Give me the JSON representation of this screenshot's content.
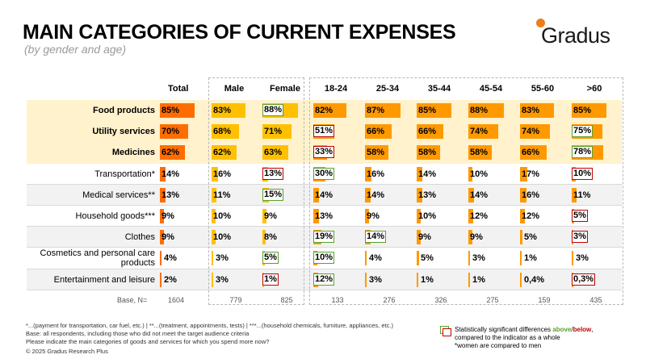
{
  "title": "MAIN CATEGORIES OF CURRENT EXPENSES",
  "subtitle": "(by gender and age)",
  "logo_text": "Gradus",
  "colors": {
    "total": "#ff6d00",
    "gender": "#ffc000",
    "age": "#ff9900",
    "up": "#5aa02c",
    "down": "#c00000",
    "highlight": "#fff2cc",
    "stripe": "#f2f2f2"
  },
  "chart_data": {
    "type": "table",
    "title": "MAIN CATEGORIES OF CURRENT EXPENSES",
    "subtitle": "(by gender and age)",
    "columns": [
      "Total",
      "Male",
      "Female",
      "18-24",
      "25-34",
      "35-44",
      "45-54",
      "55-60",
      ">60"
    ],
    "rows": [
      {
        "label": "Food products",
        "bold": true,
        "highlight": true,
        "values": [
          "85%",
          "83%",
          "88%",
          "82%",
          "87%",
          "85%",
          "88%",
          "83%",
          "85%"
        ],
        "nums": [
          85,
          83,
          88,
          82,
          87,
          85,
          88,
          83,
          85
        ],
        "sig": [
          "",
          "",
          "up",
          "",
          "",
          "",
          "",
          "",
          ""
        ]
      },
      {
        "label": "Utility services",
        "bold": true,
        "highlight": true,
        "values": [
          "70%",
          "68%",
          "71%",
          "51%",
          "66%",
          "66%",
          "74%",
          "74%",
          "75%"
        ],
        "nums": [
          70,
          68,
          71,
          51,
          66,
          66,
          74,
          74,
          75
        ],
        "sig": [
          "",
          "",
          "",
          "down",
          "",
          "",
          "",
          "",
          "up"
        ]
      },
      {
        "label": "Medicines",
        "bold": true,
        "highlight": true,
        "values": [
          "62%",
          "62%",
          "63%",
          "33%",
          "58%",
          "58%",
          "58%",
          "66%",
          "78%"
        ],
        "nums": [
          62,
          62,
          63,
          33,
          58,
          58,
          58,
          66,
          78
        ],
        "sig": [
          "",
          "",
          "",
          "down",
          "",
          "",
          "",
          "",
          "up"
        ]
      },
      {
        "label": "Transportation*",
        "bold": false,
        "highlight": false,
        "values": [
          "14%",
          "16%",
          "13%",
          "30%",
          "16%",
          "14%",
          "10%",
          "17%",
          "10%"
        ],
        "nums": [
          14,
          16,
          13,
          30,
          16,
          14,
          10,
          17,
          10
        ],
        "sig": [
          "",
          "",
          "down",
          "up",
          "",
          "",
          "",
          "",
          "down"
        ]
      },
      {
        "label": "Medical services**",
        "bold": false,
        "highlight": false,
        "values": [
          "13%",
          "11%",
          "15%",
          "14%",
          "14%",
          "13%",
          "14%",
          "16%",
          "11%"
        ],
        "nums": [
          13,
          11,
          15,
          14,
          14,
          13,
          14,
          16,
          11
        ],
        "sig": [
          "",
          "",
          "up",
          "",
          "",
          "",
          "",
          "",
          ""
        ]
      },
      {
        "label": "Household goods***",
        "bold": false,
        "highlight": false,
        "values": [
          "9%",
          "10%",
          "9%",
          "13%",
          "9%",
          "10%",
          "12%",
          "12%",
          "5%"
        ],
        "nums": [
          9,
          10,
          9,
          13,
          9,
          10,
          12,
          12,
          5
        ],
        "sig": [
          "",
          "",
          "",
          "",
          "",
          "",
          "",
          "",
          "down"
        ]
      },
      {
        "label": "Clothes",
        "bold": false,
        "highlight": false,
        "values": [
          "9%",
          "10%",
          "8%",
          "19%",
          "14%",
          "9%",
          "9%",
          "5%",
          "3%"
        ],
        "nums": [
          9,
          10,
          8,
          19,
          14,
          9,
          9,
          5,
          3
        ],
        "sig": [
          "",
          "",
          "",
          "up",
          "up",
          "",
          "",
          "",
          "down"
        ]
      },
      {
        "label": "Cosmetics and personal care products",
        "bold": false,
        "highlight": false,
        "values": [
          "4%",
          "3%",
          "5%",
          "10%",
          "4%",
          "5%",
          "3%",
          "1%",
          "3%"
        ],
        "nums": [
          4,
          3,
          5,
          10,
          4,
          5,
          3,
          1,
          3
        ],
        "sig": [
          "",
          "",
          "up",
          "up",
          "",
          "",
          "",
          "",
          ""
        ]
      },
      {
        "label": "Entertainment and leisure",
        "bold": false,
        "highlight": false,
        "values": [
          "2%",
          "3%",
          "1%",
          "12%",
          "3%",
          "1%",
          "1%",
          "0,4%",
          "0,3%"
        ],
        "nums": [
          2,
          3,
          1,
          12,
          3,
          1,
          1,
          0.4,
          0.3
        ],
        "sig": [
          "",
          "",
          "down",
          "up",
          "",
          "",
          "",
          "",
          "down"
        ]
      }
    ],
    "base_label": "Base, N=",
    "base": [
      "1604",
      "779",
      "825",
      "133",
      "276",
      "326",
      "275",
      "159",
      "435"
    ]
  },
  "footnotes": {
    "line1": "*...(payment for transportation, car fuel, etc.) | **...(treatment, appointments, tests) | ***...(household chemicals, furniture, appliances, etc.)",
    "line2": "Base: all respondents, including those who did not meet the target audience criteria",
    "line3": "Please indicate the main categories of goods and services for which you spend more now?",
    "copyright": "© 2025 Gradus Research Plus"
  },
  "legend": {
    "prefix": "Statistically significant differences ",
    "above": "above",
    "slash": "/",
    "below": "below",
    "suffix": ",",
    "line2": "compared to the indicator as a whole",
    "line3": "*women are compared to men"
  }
}
